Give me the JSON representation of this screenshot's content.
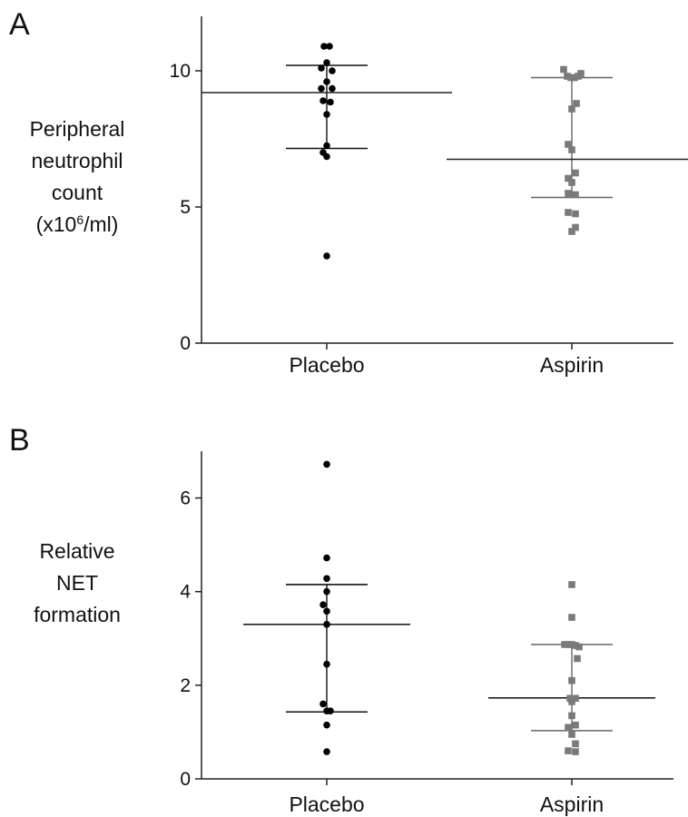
{
  "panels": {
    "a": {
      "letter": "A",
      "ylabel_lines": [
        "Peripheral",
        "neutrophil",
        "count"
      ],
      "ylabel_unit_prefix": "(x10",
      "ylabel_unit_sup": "6",
      "ylabel_unit_suffix": "/ml)"
    },
    "b": {
      "letter": "B",
      "ylabel_lines": [
        "Relative",
        "NET",
        "formation"
      ]
    }
  },
  "colors": {
    "placebo": "#000000",
    "aspirin": "#7a7a7a",
    "median_line": "#222222",
    "axis": "#222222"
  },
  "chart_data": [
    {
      "type": "scatter",
      "panel": "A",
      "ylabel": "Peripheral neutrophil count (x10^6/ml)",
      "categories": [
        "Placebo",
        "Aspirin"
      ],
      "ylim": [
        0,
        12
      ],
      "yticks": [
        0,
        5,
        10
      ],
      "grid": false,
      "series": [
        {
          "name": "Placebo",
          "marker": "circle",
          "color": "#000000",
          "points": [
            [
              -0.03,
              10.9
            ],
            [
              0.03,
              10.9
            ],
            [
              -0.06,
              10.1
            ],
            [
              0.0,
              10.3
            ],
            [
              0.06,
              10.0
            ],
            [
              0.0,
              9.6
            ],
            [
              -0.06,
              9.35
            ],
            [
              0.06,
              9.35
            ],
            [
              -0.04,
              8.9
            ],
            [
              0.04,
              8.85
            ],
            [
              0.0,
              8.4
            ],
            [
              0.0,
              7.25
            ],
            [
              -0.04,
              7.0
            ],
            [
              0.0,
              6.85
            ],
            [
              0.0,
              3.2
            ]
          ],
          "median": 9.2,
          "q1": 7.15,
          "q3": 10.2
        },
        {
          "name": "Aspirin",
          "marker": "square",
          "color": "#7a7a7a",
          "points": [
            [
              -0.09,
              10.05
            ],
            [
              -0.05,
              9.8
            ],
            [
              -0.01,
              9.75
            ],
            [
              0.03,
              9.75
            ],
            [
              0.07,
              9.8
            ],
            [
              0.1,
              9.9
            ],
            [
              0.05,
              8.8
            ],
            [
              0.0,
              8.6
            ],
            [
              -0.04,
              7.3
            ],
            [
              0.0,
              7.1
            ],
            [
              0.04,
              6.25
            ],
            [
              -0.04,
              6.05
            ],
            [
              0.0,
              5.9
            ],
            [
              -0.04,
              5.5
            ],
            [
              0.04,
              5.45
            ],
            [
              -0.04,
              4.8
            ],
            [
              0.04,
              4.75
            ],
            [
              0.04,
              4.25
            ],
            [
              0.0,
              4.1
            ]
          ],
          "median": 6.75,
          "q1": 5.35,
          "q3": 9.75
        }
      ]
    },
    {
      "type": "scatter",
      "panel": "B",
      "ylabel": "Relative NET formation",
      "categories": [
        "Placebo",
        "Aspirin"
      ],
      "ylim": [
        0,
        7
      ],
      "yticks": [
        0,
        2,
        4,
        6
      ],
      "grid": false,
      "series": [
        {
          "name": "Placebo",
          "marker": "circle",
          "color": "#000000",
          "points": [
            [
              0.0,
              6.72
            ],
            [
              0.0,
              4.72
            ],
            [
              0.0,
              4.28
            ],
            [
              0.0,
              4.0
            ],
            [
              -0.04,
              3.72
            ],
            [
              0.0,
              3.58
            ],
            [
              0.0,
              3.3
            ],
            [
              0.0,
              2.45
            ],
            [
              -0.04,
              1.6
            ],
            [
              0.0,
              1.45
            ],
            [
              0.04,
              1.45
            ],
            [
              0.0,
              1.15
            ],
            [
              0.0,
              0.58
            ]
          ],
          "median": 3.3,
          "q1": 1.43,
          "q3": 4.15
        },
        {
          "name": "Aspirin",
          "marker": "square",
          "color": "#7a7a7a",
          "points": [
            [
              0.0,
              4.15
            ],
            [
              0.0,
              3.45
            ],
            [
              -0.08,
              2.87
            ],
            [
              -0.04,
              2.87
            ],
            [
              0.0,
              2.87
            ],
            [
              0.04,
              2.85
            ],
            [
              0.08,
              2.82
            ],
            [
              0.06,
              2.57
            ],
            [
              0.0,
              2.1
            ],
            [
              0.0,
              1.65
            ],
            [
              0.04,
              1.72
            ],
            [
              -0.02,
              1.72
            ],
            [
              0.0,
              1.35
            ],
            [
              0.04,
              1.15
            ],
            [
              -0.04,
              1.1
            ],
            [
              0.0,
              0.95
            ],
            [
              0.04,
              0.75
            ],
            [
              -0.04,
              0.6
            ],
            [
              0.04,
              0.58
            ]
          ],
          "median": 1.73,
          "q1": 1.03,
          "q3": 2.87
        }
      ]
    }
  ]
}
